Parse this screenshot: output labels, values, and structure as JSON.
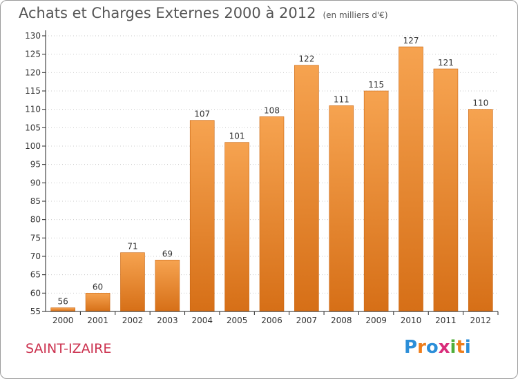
{
  "title": "Achats et Charges Externes 2000 à 2012",
  "unit": "(en milliers d'€)",
  "commune": "SAINT-IZAIRE",
  "logo": {
    "letters": [
      "P",
      "r",
      "o",
      "x",
      "i",
      "t",
      "i"
    ],
    "colors": [
      "#2c8ed8",
      "#ef7d1a",
      "#2c8ed8",
      "#d92c7a",
      "#4fae3a",
      "#ef7d1a",
      "#2c8ed8"
    ]
  },
  "colors": {
    "bar_top": "#f6a350",
    "bar_bottom": "#d66f17",
    "bar_edge": "#c86410",
    "axis": "#222222",
    "grid": "#c9c9c9"
  },
  "chart_data": {
    "type": "bar",
    "categories": [
      "2000",
      "2001",
      "2002",
      "2003",
      "2004",
      "2005",
      "2006",
      "2007",
      "2008",
      "2009",
      "2010",
      "2011",
      "2012"
    ],
    "values": [
      56,
      60,
      71,
      69,
      107,
      101,
      108,
      122,
      111,
      115,
      127,
      121,
      110
    ],
    "yticks": [
      55,
      60,
      65,
      70,
      75,
      80,
      85,
      90,
      95,
      100,
      105,
      110,
      115,
      120,
      125,
      130
    ],
    "ylim": [
      55,
      130
    ],
    "grid": true
  }
}
